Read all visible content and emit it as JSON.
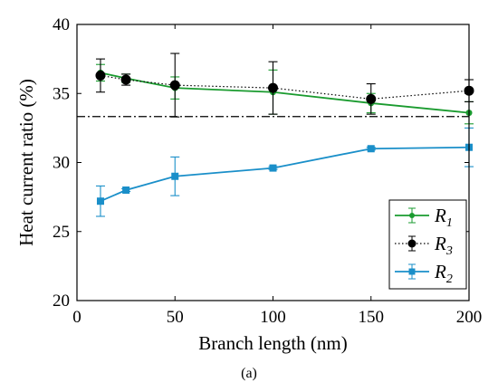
{
  "chart_data": {
    "type": "line",
    "xlabel": "Branch length (nm)",
    "ylabel": "Heat current ratio (%)",
    "caption": "(a)",
    "xlim": [
      0,
      200
    ],
    "ylim": [
      20,
      40
    ],
    "xticks": [
      0,
      50,
      100,
      150,
      200
    ],
    "yticks": [
      20,
      25,
      30,
      35,
      40
    ],
    "reference_line": {
      "y": 33.33,
      "style": "dash-dot",
      "color": "#000000"
    },
    "grid": false,
    "legend_position": "bottom-right",
    "series": [
      {
        "name": "R",
        "subscript": "1",
        "color": "#1a9b2f",
        "line_style": "solid",
        "marker": "circle-small",
        "x": [
          12,
          25,
          50,
          100,
          150,
          200
        ],
        "y": [
          36.5,
          36.1,
          35.4,
          35.1,
          34.3,
          33.6
        ],
        "err": [
          0.6,
          0.3,
          0.8,
          1.6,
          0.7,
          0.8
        ]
      },
      {
        "name": "R",
        "subscript": "3",
        "color": "#000000",
        "line_style": "dotted",
        "marker": "circle-large",
        "x": [
          12,
          25,
          50,
          100,
          150,
          200
        ],
        "y": [
          36.3,
          36.0,
          35.6,
          35.4,
          34.6,
          35.2
        ],
        "err": [
          1.2,
          0.4,
          2.3,
          1.9,
          1.1,
          0.8
        ]
      },
      {
        "name": "R",
        "subscript": "2",
        "color": "#1a8fc9",
        "line_style": "solid",
        "marker": "square",
        "x": [
          12,
          25,
          50,
          100,
          150,
          200
        ],
        "y": [
          27.2,
          28.0,
          29.0,
          29.6,
          31.0,
          31.1
        ],
        "err": [
          1.1,
          0.1,
          1.4,
          0.1,
          0.1,
          1.4
        ]
      }
    ]
  }
}
